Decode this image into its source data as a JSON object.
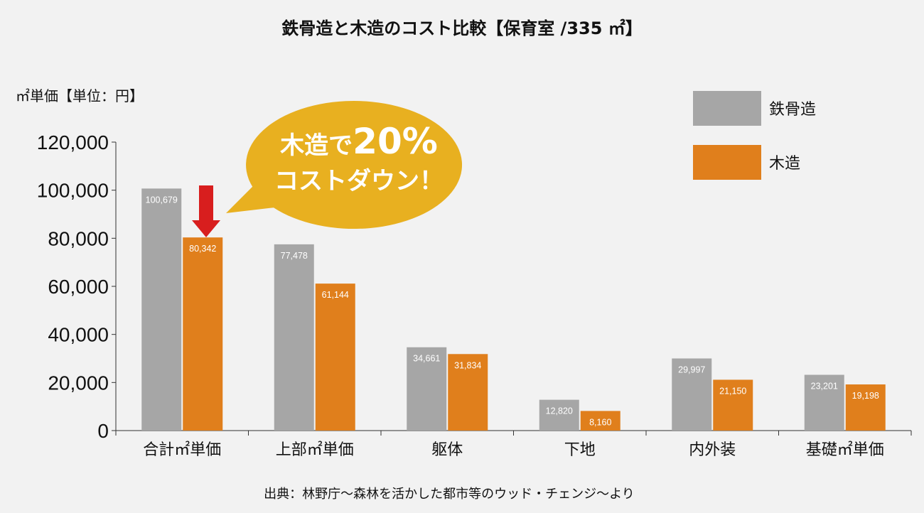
{
  "chart_data": {
    "type": "bar",
    "title": "鉄骨造と木造のコスト比較【保育室 /335 ㎡】",
    "ylabel": "㎡単価【単位：円】",
    "xlabel": "",
    "categories": [
      "合計㎡単価",
      "上部㎡単価",
      "躯体",
      "下地",
      "内外装",
      "基礎㎡単価"
    ],
    "series": [
      {
        "name": "鉄骨造",
        "color": "#a6a6a6",
        "values": [
          100679,
          77478,
          34661,
          12820,
          29997,
          23201
        ],
        "labels": [
          "100,679",
          "77,478",
          "34,661",
          "12,820",
          "29,997",
          "23,201"
        ]
      },
      {
        "name": "木造",
        "color": "#e07f1c",
        "values": [
          80342,
          61144,
          31834,
          8160,
          21150,
          19198
        ],
        "labels": [
          "80,342",
          "61,144",
          "31,834",
          "8,160",
          "21,150",
          "19,198"
        ]
      }
    ],
    "ylim": [
      0,
      120000
    ],
    "yticks": [
      0,
      20000,
      40000,
      60000,
      80000,
      100000,
      120000
    ],
    "ytick_labels": [
      "0",
      "20,000",
      "40,000",
      "60,000",
      "80,000",
      "100,000",
      "120,000"
    ],
    "grid": false,
    "legend_position": "top-right",
    "annotation": {
      "line1_prefix": "木造で",
      "line1_value": "20%",
      "line2": "コストダウン！",
      "bubble_color": "#e8b020",
      "arrow_color": "#d81e1e"
    },
    "source": "出典：林野庁～森林を活かした都市等のウッド・チェンジ～より"
  }
}
